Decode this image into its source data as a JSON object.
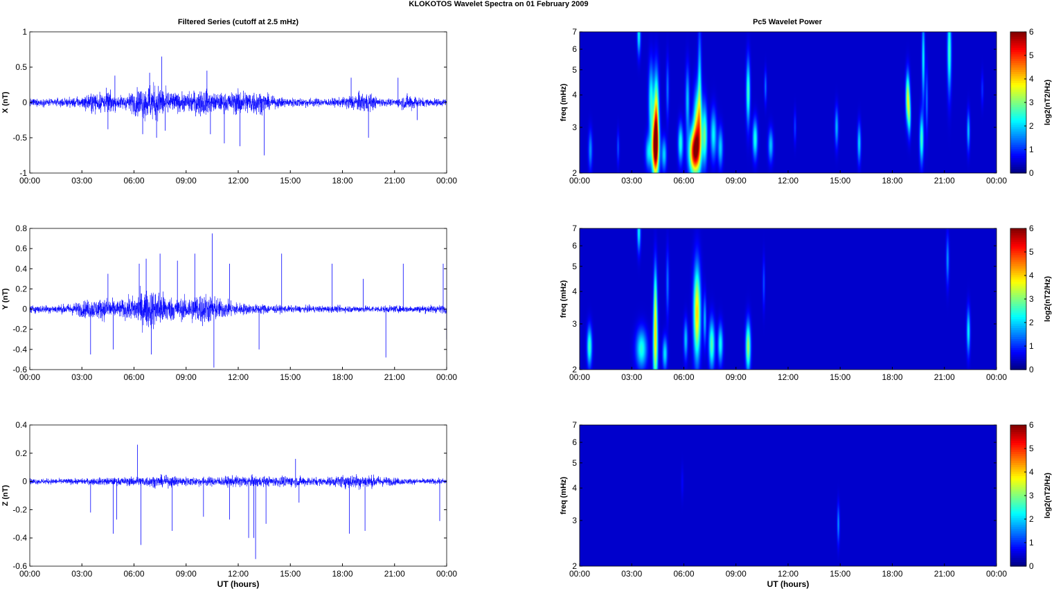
{
  "figure": {
    "title": "KLOKOTOS Wavelet Spectra on 01 February  2009",
    "left_title": "Filtered Series (cutoff at 2.5 mHz)",
    "right_title": "Pc5 Wavelet Power",
    "xlabel": "UT (hours)",
    "freq_label": "freq (mHz)",
    "colorbar_label": "log2(nT2/Hz)"
  },
  "colors": {
    "series": "#0000ff",
    "background": "#ffffff",
    "heatmap_low": "#00008f",
    "heatmap_high": "#800000"
  },
  "chart_data": [
    {
      "type": "line",
      "title": "Filtered Series (cutoff at 2.5 mHz)",
      "ylabel": "X (nT)",
      "xlabel": "",
      "xlim": [
        0,
        24
      ],
      "ylim": [
        -1,
        1
      ],
      "xticks": [
        "00:00",
        "03:00",
        "06:00",
        "09:00",
        "12:00",
        "15:00",
        "18:00",
        "21:00",
        "00:00"
      ],
      "yticks": [
        "-1",
        "-0.5",
        "0",
        "0.5",
        "1"
      ],
      "yvals": [
        -1,
        -0.5,
        0,
        0.5,
        1
      ],
      "grid": false,
      "envelope": {
        "hours": [
          0,
          1,
          2,
          3,
          3.5,
          4,
          4.5,
          5,
          5.5,
          6,
          6.5,
          7,
          7.5,
          8,
          8.5,
          9,
          9.5,
          10,
          10.5,
          11,
          11.5,
          12,
          12.5,
          13,
          13.5,
          14,
          15,
          16,
          17,
          18,
          18.5,
          19,
          19.5,
          20,
          20.5,
          21,
          21.5,
          22,
          22.5,
          23,
          24
        ],
        "amplitude": [
          0.08,
          0.08,
          0.09,
          0.12,
          0.2,
          0.22,
          0.25,
          0.15,
          0.15,
          0.25,
          0.35,
          0.4,
          0.35,
          0.25,
          0.2,
          0.2,
          0.25,
          0.3,
          0.2,
          0.2,
          0.2,
          0.28,
          0.25,
          0.28,
          0.2,
          0.12,
          0.1,
          0.1,
          0.08,
          0.1,
          0.18,
          0.2,
          0.22,
          0.1,
          0.08,
          0.07,
          0.15,
          0.18,
          0.1,
          0.08,
          0.08
        ]
      },
      "spikes": [
        [
          4.5,
          -0.38
        ],
        [
          4.9,
          0.38
        ],
        [
          6.5,
          -0.45
        ],
        [
          6.9,
          0.42
        ],
        [
          7.3,
          -0.5
        ],
        [
          7.6,
          0.65
        ],
        [
          7.8,
          -0.4
        ],
        [
          10.2,
          0.45
        ],
        [
          10.4,
          -0.45
        ],
        [
          11.2,
          -0.58
        ],
        [
          12.1,
          -0.62
        ],
        [
          13.5,
          -0.75
        ],
        [
          18.5,
          0.35
        ],
        [
          19.5,
          -0.5
        ],
        [
          21.2,
          0.35
        ],
        [
          22.3,
          -0.25
        ]
      ]
    },
    {
      "type": "line",
      "ylabel": "Y (nT)",
      "xlabel": "",
      "xlim": [
        0,
        24
      ],
      "ylim": [
        -0.6,
        0.8
      ],
      "xticks": [
        "00:00",
        "03:00",
        "06:00",
        "09:00",
        "12:00",
        "15:00",
        "18:00",
        "21:00",
        "00:00"
      ],
      "yticks": [
        "-0.6",
        "-0.4",
        "-0.2",
        "0",
        "0.2",
        "0.4",
        "0.6",
        "0.8"
      ],
      "yvals": [
        -0.6,
        -0.4,
        -0.2,
        0,
        0.2,
        0.4,
        0.6,
        0.8
      ],
      "grid": false,
      "envelope": {
        "hours": [
          0,
          1,
          2,
          3,
          3.5,
          4,
          4.5,
          5,
          5.5,
          6,
          6.5,
          7,
          7.5,
          8,
          8.5,
          9,
          9.5,
          10,
          10.5,
          11,
          11.5,
          12,
          12.5,
          13,
          13.5,
          14,
          15,
          16,
          17,
          18,
          19,
          20,
          21,
          22,
          23,
          24
        ],
        "amplitude": [
          0.06,
          0.06,
          0.07,
          0.12,
          0.15,
          0.15,
          0.18,
          0.12,
          0.15,
          0.2,
          0.28,
          0.3,
          0.28,
          0.2,
          0.15,
          0.18,
          0.22,
          0.25,
          0.2,
          0.15,
          0.12,
          0.1,
          0.08,
          0.07,
          0.08,
          0.06,
          0.05,
          0.05,
          0.05,
          0.05,
          0.05,
          0.05,
          0.05,
          0.05,
          0.06,
          0.06
        ]
      },
      "spikes": [
        [
          3.5,
          -0.45
        ],
        [
          4.5,
          0.35
        ],
        [
          4.8,
          -0.4
        ],
        [
          6.3,
          0.45
        ],
        [
          6.7,
          0.5
        ],
        [
          7.0,
          -0.45
        ],
        [
          7.5,
          0.55
        ],
        [
          8.5,
          0.48
        ],
        [
          9.5,
          0.55
        ],
        [
          10.5,
          0.75
        ],
        [
          10.6,
          -0.58
        ],
        [
          11.5,
          0.45
        ],
        [
          13.2,
          -0.4
        ],
        [
          14.5,
          0.55
        ],
        [
          17.4,
          0.45
        ],
        [
          19.2,
          0.3
        ],
        [
          20.5,
          -0.48
        ],
        [
          21.5,
          0.45
        ],
        [
          23.8,
          0.45
        ],
        [
          24,
          -0.3
        ]
      ]
    },
    {
      "type": "line",
      "ylabel": "Z (nT)",
      "xlabel": "UT (hours)",
      "xlim": [
        0,
        24
      ],
      "ylim": [
        -0.6,
        0.4
      ],
      "xticks": [
        "00:00",
        "03:00",
        "06:00",
        "09:00",
        "12:00",
        "15:00",
        "18:00",
        "21:00",
        "00:00"
      ],
      "yticks": [
        "-0.6",
        "-0.4",
        "-0.2",
        "0",
        "0.2",
        "0.4"
      ],
      "yvals": [
        -0.6,
        -0.4,
        -0.2,
        0,
        0.2,
        0.4
      ],
      "grid": false,
      "envelope": {
        "hours": [
          0,
          2,
          3,
          4,
          5,
          6,
          7,
          8,
          9,
          10,
          11,
          12,
          13,
          14,
          15,
          16,
          17,
          18,
          19,
          20,
          21,
          22,
          23,
          24
        ],
        "amplitude": [
          0.03,
          0.03,
          0.03,
          0.04,
          0.04,
          0.05,
          0.06,
          0.06,
          0.05,
          0.05,
          0.05,
          0.06,
          0.06,
          0.05,
          0.06,
          0.05,
          0.04,
          0.07,
          0.08,
          0.06,
          0.04,
          0.03,
          0.03,
          0.03
        ]
      },
      "spikes": [
        [
          3.5,
          -0.22
        ],
        [
          4.8,
          -0.37
        ],
        [
          5.0,
          -0.27
        ],
        [
          6.2,
          0.26
        ],
        [
          6.4,
          -0.45
        ],
        [
          8.2,
          -0.35
        ],
        [
          10.0,
          -0.25
        ],
        [
          11.5,
          -0.27
        ],
        [
          12.6,
          -0.4
        ],
        [
          12.9,
          -0.4
        ],
        [
          13.0,
          -0.55
        ],
        [
          13.6,
          -0.3
        ],
        [
          15.3,
          0.16
        ],
        [
          15.5,
          -0.15
        ],
        [
          18.4,
          -0.37
        ],
        [
          19.3,
          -0.35
        ],
        [
          23.6,
          -0.28
        ]
      ]
    },
    {
      "type": "heatmap",
      "title": "Pc5 Wavelet Power",
      "ylabel": "freq (mHz)",
      "xlabel": "",
      "xlim": [
        0,
        24
      ],
      "ylim": [
        2,
        7
      ],
      "yscale": "log",
      "xticks": [
        "00:00",
        "03:00",
        "06:00",
        "09:00",
        "12:00",
        "15:00",
        "18:00",
        "21:00",
        "00:00"
      ],
      "yticks": [
        "2",
        "3",
        "4",
        "5",
        "6",
        "7"
      ],
      "yvals": [
        2,
        3,
        4,
        5,
        6,
        7
      ],
      "colorbar": {
        "label": "log2(nT2/Hz)",
        "ticks": [
          "0",
          "1",
          "2",
          "3",
          "4",
          "5",
          "6"
        ],
        "range": [
          0,
          6
        ]
      },
      "blobs": [
        {
          "t": 0.6,
          "f": 2.45,
          "power": 1.2,
          "dt": 0.08,
          "df": 0.12
        },
        {
          "t": 2.2,
          "f": 2.5,
          "power": 0.8,
          "dt": 0.05,
          "df": 0.1
        },
        {
          "t": 3.4,
          "f": 6.8,
          "power": 1.8,
          "dt": 0.07,
          "df": 0.12
        },
        {
          "t": 3.95,
          "f": 2.4,
          "power": 1.6,
          "dt": 0.12,
          "df": 0.1
        },
        {
          "t": 4.1,
          "f": 3.8,
          "power": 2.0,
          "dt": 0.1,
          "df": 0.22
        },
        {
          "t": 4.35,
          "f": 2.5,
          "power": 5.6,
          "dt": 0.14,
          "df": 0.18
        },
        {
          "t": 4.4,
          "f": 3.4,
          "power": 3.2,
          "dt": 0.1,
          "df": 0.25
        },
        {
          "t": 4.85,
          "f": 2.35,
          "power": 1.6,
          "dt": 0.1,
          "df": 0.1
        },
        {
          "t": 5.05,
          "f": 4.2,
          "power": 1.0,
          "dt": 0.06,
          "df": 0.18
        },
        {
          "t": 5.8,
          "f": 2.6,
          "power": 2.0,
          "dt": 0.1,
          "df": 0.12
        },
        {
          "t": 6.2,
          "f": 3.8,
          "power": 1.5,
          "dt": 0.08,
          "df": 0.2
        },
        {
          "t": 6.6,
          "f": 2.4,
          "power": 4.8,
          "dt": 0.22,
          "df": 0.14
        },
        {
          "t": 6.8,
          "f": 3.0,
          "power": 3.4,
          "dt": 0.16,
          "df": 0.22
        },
        {
          "t": 6.9,
          "f": 4.3,
          "power": 1.6,
          "dt": 0.07,
          "df": 0.35
        },
        {
          "t": 7.2,
          "f": 2.8,
          "power": 2.3,
          "dt": 0.1,
          "df": 0.18
        },
        {
          "t": 7.7,
          "f": 2.8,
          "power": 1.8,
          "dt": 0.12,
          "df": 0.15
        },
        {
          "t": 8.1,
          "f": 2.5,
          "power": 1.6,
          "dt": 0.1,
          "df": 0.12
        },
        {
          "t": 9.7,
          "f": 4.1,
          "power": 2.2,
          "dt": 0.08,
          "df": 0.2
        },
        {
          "t": 10.1,
          "f": 2.7,
          "power": 2.0,
          "dt": 0.1,
          "df": 0.12
        },
        {
          "t": 10.7,
          "f": 4.3,
          "power": 1.0,
          "dt": 0.05,
          "df": 0.1
        },
        {
          "t": 11.0,
          "f": 2.55,
          "power": 1.5,
          "dt": 0.1,
          "df": 0.1
        },
        {
          "t": 12.4,
          "f": 3.0,
          "power": 0.7,
          "dt": 0.05,
          "df": 0.1
        },
        {
          "t": 14.8,
          "f": 3.0,
          "power": 1.4,
          "dt": 0.07,
          "df": 0.12
        },
        {
          "t": 16.1,
          "f": 2.6,
          "power": 1.6,
          "dt": 0.07,
          "df": 0.12
        },
        {
          "t": 18.9,
          "f": 3.9,
          "power": 3.0,
          "dt": 0.08,
          "df": 0.15
        },
        {
          "t": 19.0,
          "f": 3.3,
          "power": 1.8,
          "dt": 0.06,
          "df": 0.12
        },
        {
          "t": 19.7,
          "f": 2.7,
          "power": 2.2,
          "dt": 0.08,
          "df": 0.15
        },
        {
          "t": 19.8,
          "f": 5.5,
          "power": 1.8,
          "dt": 0.06,
          "df": 0.25
        },
        {
          "t": 20.0,
          "f": 3.8,
          "power": 1.0,
          "dt": 0.05,
          "df": 0.2
        },
        {
          "t": 21.3,
          "f": 5.9,
          "power": 2.2,
          "dt": 0.08,
          "df": 0.25
        },
        {
          "t": 22.4,
          "f": 2.9,
          "power": 1.5,
          "dt": 0.06,
          "df": 0.12
        },
        {
          "t": 23.2,
          "f": 4.2,
          "power": 0.6,
          "dt": 0.05,
          "df": 0.1
        }
      ]
    },
    {
      "type": "heatmap",
      "ylabel": "freq (mHz)",
      "xlabel": "",
      "xlim": [
        0,
        24
      ],
      "ylim": [
        2,
        7
      ],
      "yscale": "log",
      "xticks": [
        "00:00",
        "03:00",
        "06:00",
        "09:00",
        "12:00",
        "15:00",
        "18:00",
        "21:00",
        "00:00"
      ],
      "yticks": [
        "2",
        "3",
        "4",
        "5",
        "6",
        "7"
      ],
      "yvals": [
        2,
        3,
        4,
        5,
        6,
        7
      ],
      "colorbar": {
        "label": "log2(nT2/Hz)",
        "ticks": [
          "0",
          "1",
          "2",
          "3",
          "4",
          "5",
          "6"
        ],
        "range": [
          0,
          6
        ]
      },
      "blobs": [
        {
          "t": 0.55,
          "f": 2.45,
          "power": 2.2,
          "dt": 0.1,
          "df": 0.12
        },
        {
          "t": 3.4,
          "f": 6.8,
          "power": 1.8,
          "dt": 0.07,
          "df": 0.12
        },
        {
          "t": 3.55,
          "f": 2.4,
          "power": 2.0,
          "dt": 0.22,
          "df": 0.12
        },
        {
          "t": 4.35,
          "f": 2.4,
          "power": 2.7,
          "dt": 0.1,
          "df": 0.25
        },
        {
          "t": 4.35,
          "f": 3.6,
          "power": 2.2,
          "dt": 0.07,
          "df": 0.25
        },
        {
          "t": 4.9,
          "f": 2.3,
          "power": 1.7,
          "dt": 0.1,
          "df": 0.1
        },
        {
          "t": 5.05,
          "f": 4.3,
          "power": 1.0,
          "dt": 0.06,
          "df": 0.2
        },
        {
          "t": 6.1,
          "f": 2.6,
          "power": 1.5,
          "dt": 0.08,
          "df": 0.12
        },
        {
          "t": 6.75,
          "f": 3.3,
          "power": 3.6,
          "dt": 0.14,
          "df": 0.28
        },
        {
          "t": 7.2,
          "f": 3.1,
          "power": 1.4,
          "dt": 0.06,
          "df": 0.15
        },
        {
          "t": 7.6,
          "f": 2.5,
          "power": 2.3,
          "dt": 0.12,
          "df": 0.15
        },
        {
          "t": 8.1,
          "f": 2.5,
          "power": 1.9,
          "dt": 0.1,
          "df": 0.12
        },
        {
          "t": 9.7,
          "f": 2.45,
          "power": 2.8,
          "dt": 0.1,
          "df": 0.15
        },
        {
          "t": 10.6,
          "f": 4.3,
          "power": 0.8,
          "dt": 0.05,
          "df": 0.15
        },
        {
          "t": 21.2,
          "f": 5.3,
          "power": 1.2,
          "dt": 0.06,
          "df": 0.15
        },
        {
          "t": 22.4,
          "f": 2.8,
          "power": 1.8,
          "dt": 0.07,
          "df": 0.14
        }
      ]
    },
    {
      "type": "heatmap",
      "ylabel": "freq (mHz)",
      "xlabel": "UT (hours)",
      "xlim": [
        0,
        24
      ],
      "ylim": [
        2,
        7
      ],
      "yscale": "log",
      "xticks": [
        "00:00",
        "03:00",
        "06:00",
        "09:00",
        "12:00",
        "15:00",
        "18:00",
        "21:00",
        "00:00"
      ],
      "yticks": [
        "2",
        "3",
        "4",
        "5",
        "6",
        "7"
      ],
      "yvals": [
        2,
        3,
        4,
        5,
        6,
        7
      ],
      "colorbar": {
        "label": "log2(nT2/Hz)",
        "ticks": [
          "0",
          "1",
          "2",
          "3",
          "4",
          "5",
          "6"
        ],
        "range": [
          0,
          6
        ]
      },
      "blobs": [
        {
          "t": 14.9,
          "f": 2.9,
          "power": 1.2,
          "dt": 0.05,
          "df": 0.12
        },
        {
          "t": 5.9,
          "f": 4.2,
          "power": 0.3,
          "dt": 0.05,
          "df": 0.1
        }
      ]
    }
  ]
}
